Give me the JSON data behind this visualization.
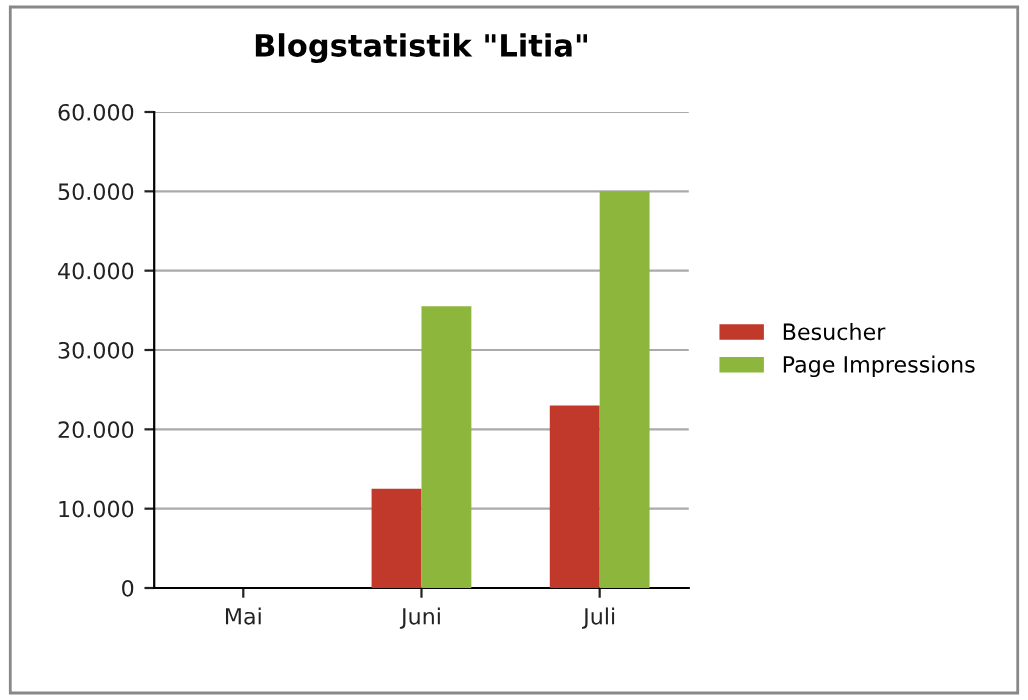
{
  "chart_data": {
    "type": "bar",
    "title": "Blogstatistik \"Litia\"",
    "categories": [
      "Mai",
      "Juni",
      "Juli"
    ],
    "series": [
      {
        "name": "Besucher",
        "color": "#c0392b",
        "values": [
          0,
          12500,
          23000
        ]
      },
      {
        "name": "Page Impressions",
        "color": "#8db63c",
        "values": [
          0,
          35500,
          50000
        ]
      }
    ],
    "ylim": [
      0,
      60000
    ],
    "yticks": [
      {
        "value": 0,
        "label": "0"
      },
      {
        "value": 10000,
        "label": "10.000"
      },
      {
        "value": 20000,
        "label": "20.000"
      },
      {
        "value": 30000,
        "label": "30.000"
      },
      {
        "value": 40000,
        "label": "40.000"
      },
      {
        "value": 50000,
        "label": "50.000"
      },
      {
        "value": 60000,
        "label": "60.000"
      }
    ],
    "grid": "y",
    "legend": "right"
  }
}
